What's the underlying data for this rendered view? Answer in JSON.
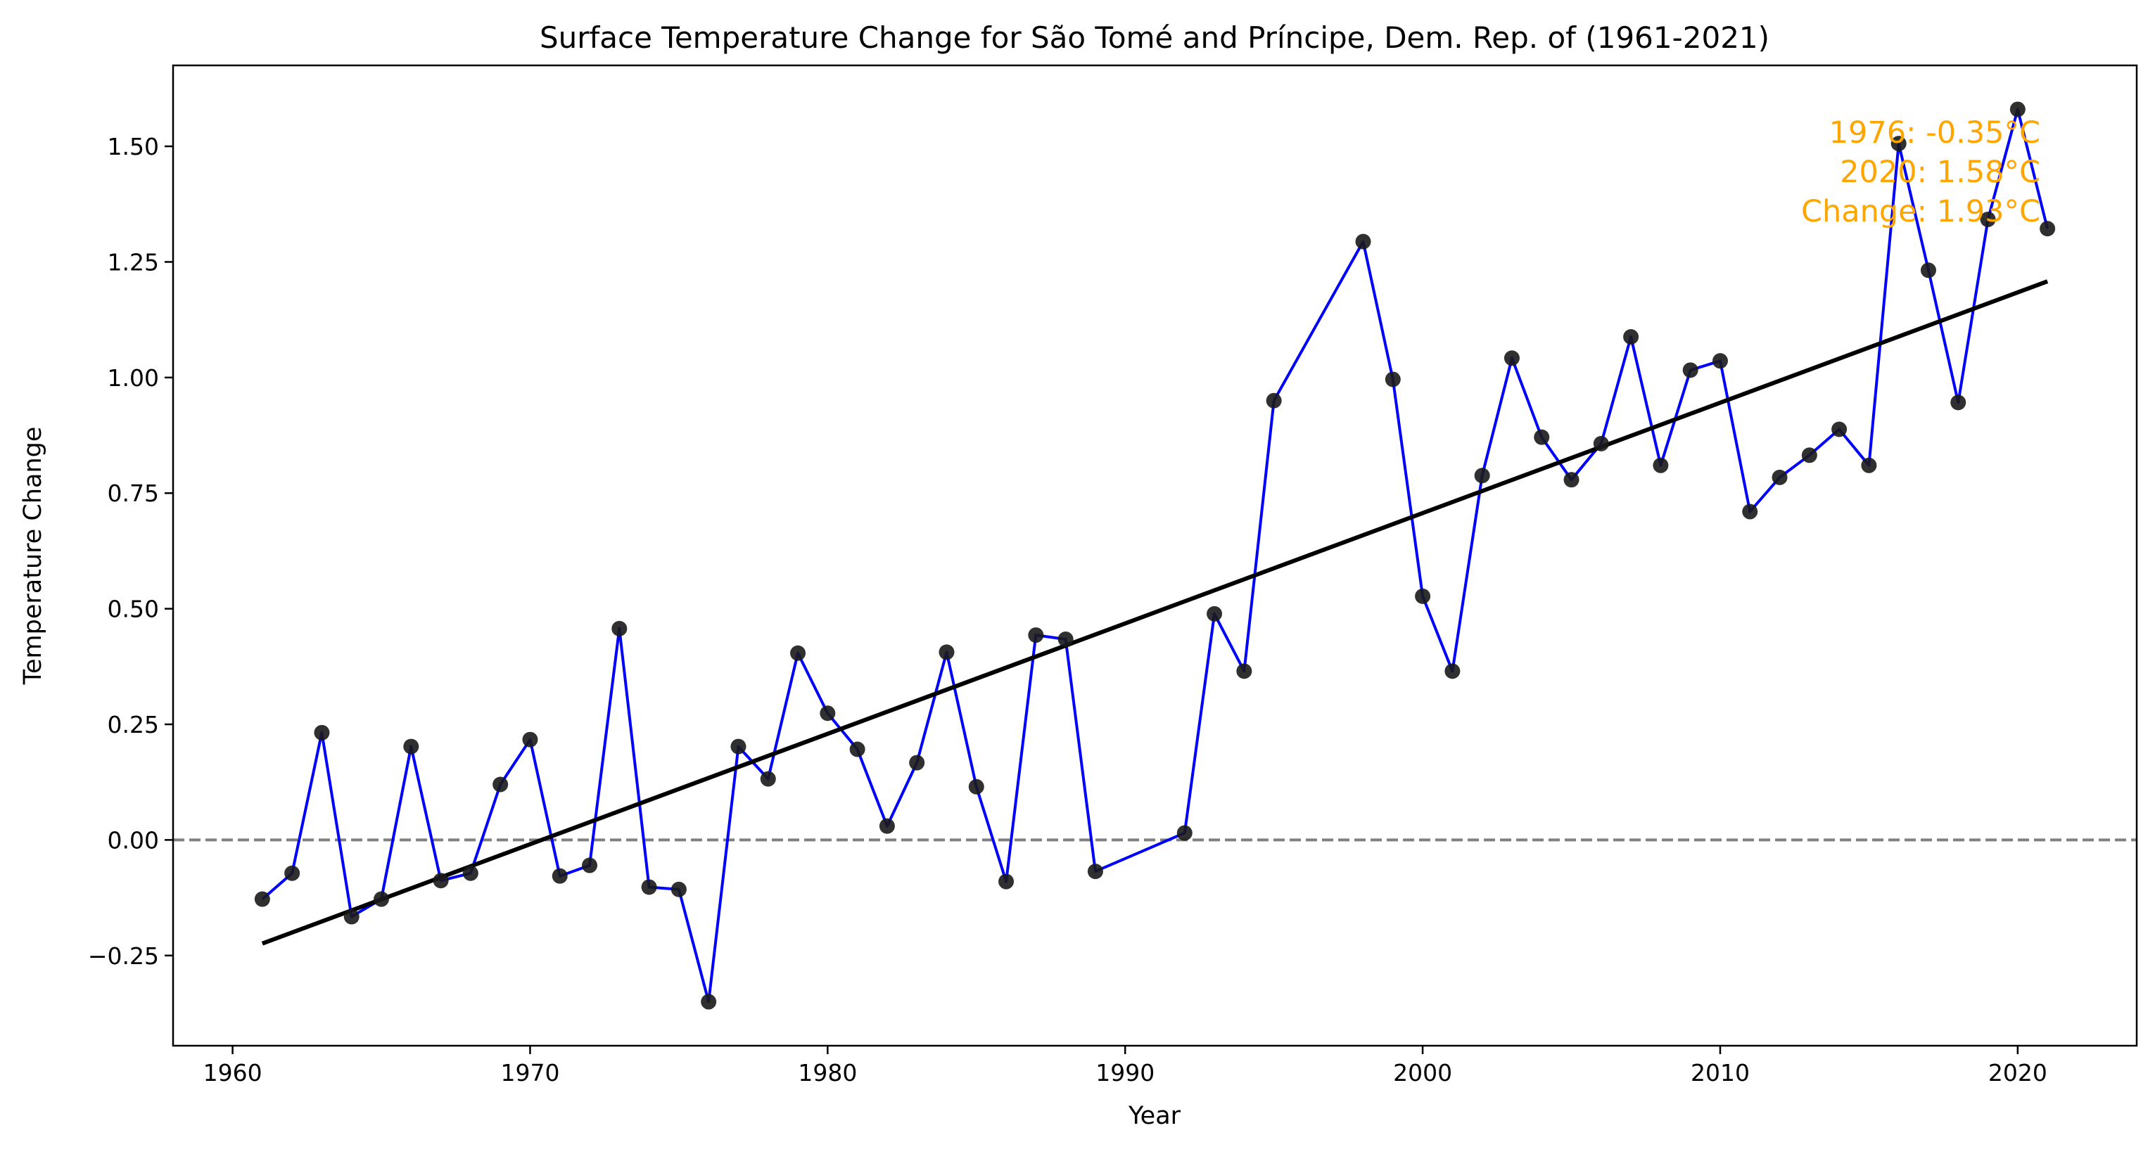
{
  "chart_data": {
    "type": "line",
    "title": "Surface Temperature Change for São Tomé and Príncipe, Dem. Rep. of (1961-2021)",
    "xlabel": "Year",
    "ylabel": "Temperature Change",
    "xlim": [
      1958.0,
      2024.0
    ],
    "ylim": [
      -0.445,
      1.675
    ],
    "x_ticks": [
      1960,
      1970,
      1980,
      1990,
      2000,
      2010,
      2020
    ],
    "y_ticks": [
      -0.25,
      0.0,
      0.25,
      0.5,
      0.75,
      1.0,
      1.25,
      1.5
    ],
    "y_tick_labels": [
      "−0.25",
      "0.00",
      "0.25",
      "0.50",
      "0.75",
      "1.00",
      "1.25",
      "1.50"
    ],
    "grid": false,
    "series": [
      {
        "line_color": "#0000ff",
        "marker_color": "#1a1a1a",
        "x": [
          1961,
          1962,
          1963,
          1964,
          1965,
          1966,
          1967,
          1968,
          1969,
          1970,
          1971,
          1972,
          1973,
          1974,
          1975,
          1976,
          1977,
          1978,
          1979,
          1980,
          1981,
          1982,
          1983,
          1984,
          1985,
          1986,
          1987,
          1988,
          1989,
          1992,
          1993,
          1994,
          1995,
          1998,
          1999,
          2000,
          2001,
          2002,
          2003,
          2004,
          2005,
          2006,
          2007,
          2008,
          2009,
          2010,
          2011,
          2012,
          2013,
          2014,
          2015,
          2016,
          2017,
          2018,
          2019,
          2020,
          2021
        ],
        "y": [
          -0.128,
          -0.072,
          0.232,
          -0.166,
          -0.128,
          0.202,
          -0.088,
          -0.072,
          0.12,
          0.217,
          -0.078,
          -0.055,
          0.457,
          -0.102,
          -0.107,
          -0.35,
          0.202,
          0.132,
          0.404,
          0.274,
          0.196,
          0.03,
          0.167,
          0.406,
          0.115,
          -0.09,
          0.443,
          0.434,
          -0.068,
          0.015,
          0.489,
          0.365,
          0.95,
          1.294,
          0.996,
          0.527,
          0.365,
          0.788,
          1.042,
          0.871,
          0.779,
          0.857,
          1.088,
          0.81,
          1.016,
          1.036,
          0.71,
          0.784,
          0.832,
          0.888,
          0.81,
          1.506,
          1.232,
          0.946,
          1.342,
          1.58,
          1.322
        ]
      }
    ],
    "trend_line": {
      "x": [
        1961,
        2021
      ],
      "y": [
        -0.224,
        1.208
      ],
      "color": "#000000"
    },
    "reference_line": {
      "y": 0.0,
      "color": "#808080",
      "style": "dashed"
    },
    "annotation": {
      "color": "#ffa500",
      "lines": [
        "1976: -0.35°C",
        "2020: 1.58°C",
        "Change: 1.93°C"
      ]
    }
  }
}
